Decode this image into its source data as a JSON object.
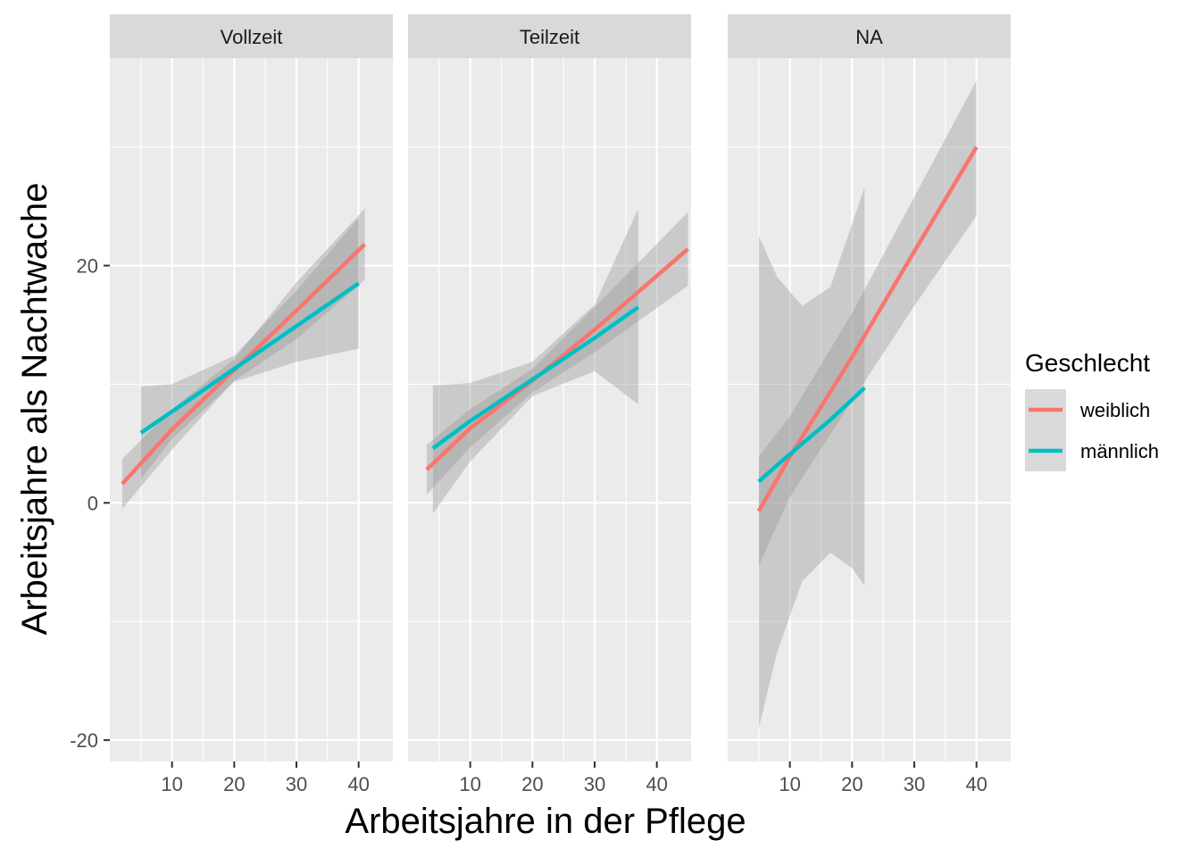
{
  "chart_data": {
    "type": "line",
    "xlabel": "Arbeitsjahre in der Pflege",
    "ylabel": "Arbeitsjahre als Nachtwache",
    "xlim": [
      0,
      45.5
    ],
    "ylim": [
      -21.8,
      37.5
    ],
    "x_ticks": [
      10,
      20,
      30,
      40
    ],
    "y_ticks": [
      -20,
      0,
      20
    ],
    "grid": true,
    "legend_position": "right",
    "legend": {
      "title": "Geschlecht",
      "entries": [
        {
          "label": "weiblich",
          "color": "#F8766D"
        },
        {
          "label": "männlich",
          "color": "#00BFC4"
        }
      ]
    },
    "band_color": "#999999",
    "panels": [
      {
        "label": "Vollzeit",
        "series": [
          {
            "name": "weiblich",
            "color": "#F8766D",
            "x": [
              2,
              10,
              20,
              30,
              41
            ],
            "y": [
              1.6,
              6.2,
              11.2,
              16.2,
              21.8
            ],
            "lower": [
              -0.5,
              4.5,
              10.3,
              13.8,
              18.8
            ],
            "upper": [
              3.7,
              7.9,
              12.1,
              18.6,
              24.8
            ]
          },
          {
            "name": "männlich",
            "color": "#00BFC4",
            "x": [
              5,
              10,
              20,
              30,
              40
            ],
            "y": [
              5.9,
              7.7,
              11.3,
              14.9,
              18.5
            ],
            "lower": [
              2.0,
              5.4,
              10.2,
              11.9,
              13.0
            ],
            "upper": [
              9.8,
              10.0,
              12.4,
              17.9,
              24.0
            ]
          }
        ]
      },
      {
        "label": "Teilzeit",
        "series": [
          {
            "name": "weiblich",
            "color": "#F8766D",
            "x": [
              3,
              10,
              20,
              30,
              45
            ],
            "y": [
              2.8,
              6.3,
              10.3,
              14.6,
              21.4
            ],
            "lower": [
              0.7,
              4.7,
              9.3,
              12.7,
              18.3
            ],
            "upper": [
              4.9,
              7.9,
              11.3,
              16.5,
              24.5
            ]
          },
          {
            "name": "männlich",
            "color": "#00BFC4",
            "x": [
              4,
              10,
              20,
              30,
              37
            ],
            "y": [
              4.6,
              6.9,
              10.4,
              13.9,
              16.5
            ],
            "lower": [
              -0.9,
              3.5,
              9.0,
              11.1,
              8.3
            ],
            "upper": [
              9.9,
              10.1,
              11.9,
              16.7,
              24.8
            ]
          }
        ]
      },
      {
        "label": "NA",
        "series": [
          {
            "name": "weiblich",
            "color": "#F8766D",
            "x": [
              5,
              10,
              20,
              30,
              40
            ],
            "y": [
              -0.7,
              3.9,
              12.3,
              21.2,
              30.0
            ],
            "lower": [
              -5.3,
              0.5,
              8.6,
              16.6,
              24.2
            ],
            "upper": [
              3.9,
              7.3,
              16.0,
              25.8,
              35.6
            ]
          },
          {
            "name": "männlich",
            "color": "#00BFC4",
            "x": [
              5,
              8,
              12,
              16.5,
              20,
              22
            ],
            "y": [
              1.8,
              3.2,
              5.0,
              7.0,
              8.7,
              9.7
            ],
            "lower": [
              -19.0,
              -12.5,
              -6.6,
              -4.2,
              -5.5,
              -7.0
            ],
            "upper": [
              22.5,
              19.0,
              16.6,
              18.2,
              23.5,
              26.6
            ]
          }
        ]
      }
    ]
  }
}
